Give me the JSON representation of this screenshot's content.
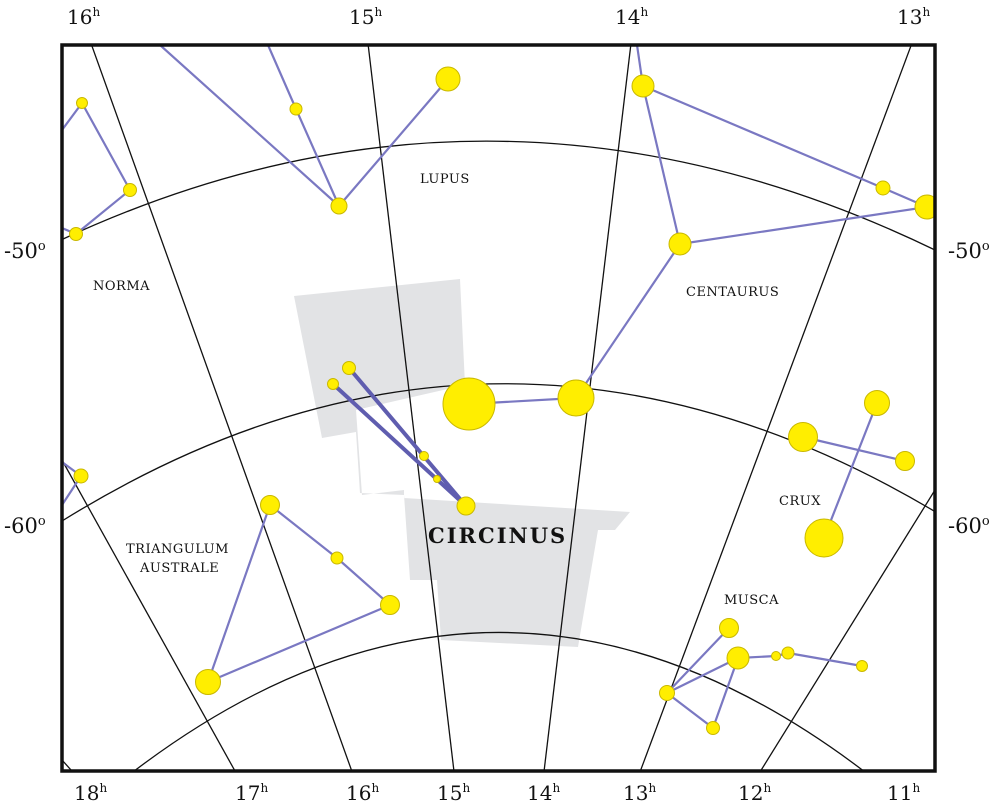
{
  "title": "CIRCINUS",
  "ra_top_labels": [
    {
      "hour": "16",
      "unit": "h"
    },
    {
      "hour": "15",
      "unit": "h"
    },
    {
      "hour": "14",
      "unit": "h"
    },
    {
      "hour": "13",
      "unit": "h"
    }
  ],
  "ra_bottom_labels": [
    {
      "hour": "18",
      "unit": "h"
    },
    {
      "hour": "17",
      "unit": "h"
    },
    {
      "hour": "16",
      "unit": "h"
    },
    {
      "hour": "15",
      "unit": "h"
    },
    {
      "hour": "14",
      "unit": "h"
    },
    {
      "hour": "13",
      "unit": "h"
    },
    {
      "hour": "12",
      "unit": "h"
    },
    {
      "hour": "11",
      "unit": "h"
    }
  ],
  "dec_labels": [
    {
      "value": "-50",
      "unit": "o"
    },
    {
      "value": "-60",
      "unit": "o"
    }
  ],
  "constellations": [
    {
      "name": "LUPUS"
    },
    {
      "name": "NORMA"
    },
    {
      "name": "CENTAURUS"
    },
    {
      "name": "CRUX"
    },
    {
      "name": "TRIANGULUM"
    },
    {
      "name": "AUSTRALE"
    },
    {
      "name": "MUSCA"
    }
  ],
  "colors": {
    "star_fill": "#ffee00",
    "star_stroke": "#c9b800",
    "line": "#7a78c2",
    "highlight_line": "#5f5daf",
    "highlight_region": "#e2e3e5",
    "grid": "#111111",
    "frame": "#111111"
  }
}
